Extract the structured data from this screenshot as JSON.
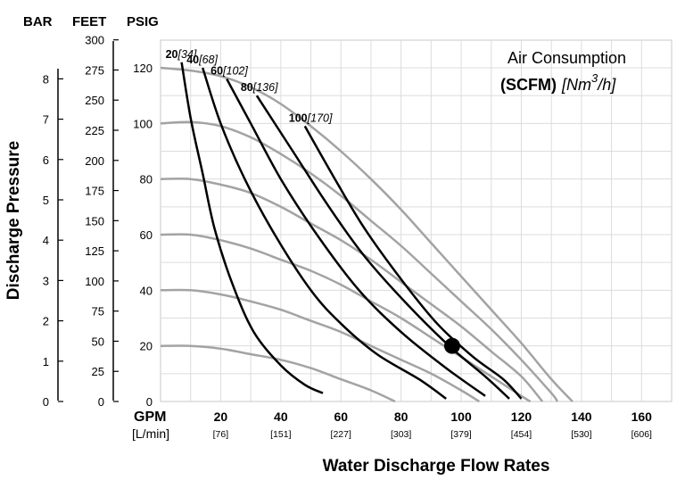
{
  "headers": {
    "bar": "BAR",
    "feet": "FEET",
    "psig": "PSIG"
  },
  "y_axis_title": "Discharge Pressure",
  "x_axis_title": "Water Discharge Flow Rates",
  "x_unit_gpm": "GPM",
  "x_unit_lmin": "[L/min]",
  "air_consumption": {
    "title": "Air Consumption",
    "unit_bold": "(SCFM)",
    "unit_italic_pre": "[Nm",
    "unit_sup": "3",
    "unit_italic_post": "/h]"
  },
  "chart_data": {
    "type": "line",
    "xlabel": "Water Discharge Flow Rates",
    "ylabel": "Discharge Pressure",
    "xlim": [
      0,
      170
    ],
    "ylim": [
      0,
      130
    ],
    "x_ticks": [
      {
        "gpm": "20",
        "lmin": "[76]",
        "x": 20
      },
      {
        "gpm": "40",
        "lmin": "[151]",
        "x": 40
      },
      {
        "gpm": "60",
        "lmin": "[227]",
        "x": 60
      },
      {
        "gpm": "80",
        "lmin": "[303]",
        "x": 80
      },
      {
        "gpm": "100",
        "lmin": "[379]",
        "x": 100
      },
      {
        "gpm": "120",
        "lmin": "[454]",
        "x": 120
      },
      {
        "gpm": "140",
        "lmin": "[530]",
        "x": 140
      },
      {
        "gpm": "160",
        "lmin": "[606]",
        "x": 160
      }
    ],
    "psig_ticks": [
      "0",
      "20",
      "40",
      "60",
      "80",
      "100",
      "120"
    ],
    "feet_ticks": [
      "0",
      "25",
      "50",
      "75",
      "100",
      "125",
      "150",
      "175",
      "200",
      "225",
      "250",
      "275",
      "300"
    ],
    "bar_ticks": [
      "0",
      "1",
      "2",
      "3",
      "4",
      "5",
      "6",
      "7",
      "8"
    ],
    "grid": true,
    "pressure_curves": [
      {
        "inlet": 120,
        "points": [
          [
            0,
            120
          ],
          [
            10,
            119
          ],
          [
            20,
            117
          ],
          [
            30,
            113
          ],
          [
            40,
            107
          ],
          [
            50,
            99
          ],
          [
            60,
            90
          ],
          [
            70,
            80
          ],
          [
            80,
            69
          ],
          [
            90,
            57
          ],
          [
            100,
            45
          ],
          [
            110,
            33
          ],
          [
            120,
            21
          ],
          [
            130,
            8
          ],
          [
            137,
            0
          ]
        ]
      },
      {
        "inlet": 100,
        "points": [
          [
            0,
            100
          ],
          [
            10,
            100.5
          ],
          [
            20,
            99
          ],
          [
            30,
            95
          ],
          [
            40,
            89
          ],
          [
            50,
            82
          ],
          [
            60,
            74
          ],
          [
            70,
            65
          ],
          [
            80,
            56
          ],
          [
            90,
            46
          ],
          [
            100,
            36
          ],
          [
            110,
            26
          ],
          [
            120,
            15
          ],
          [
            130,
            3
          ],
          [
            132,
            0
          ]
        ]
      },
      {
        "inlet": 80,
        "points": [
          [
            0,
            80
          ],
          [
            10,
            80
          ],
          [
            20,
            78
          ],
          [
            30,
            75
          ],
          [
            40,
            70
          ],
          [
            50,
            64
          ],
          [
            60,
            58
          ],
          [
            70,
            51
          ],
          [
            80,
            43
          ],
          [
            90,
            35
          ],
          [
            100,
            27
          ],
          [
            110,
            18
          ],
          [
            120,
            9
          ],
          [
            127,
            0
          ]
        ]
      },
      {
        "inlet": 60,
        "points": [
          [
            0,
            60
          ],
          [
            10,
            60
          ],
          [
            20,
            58
          ],
          [
            30,
            55
          ],
          [
            40,
            51
          ],
          [
            50,
            47
          ],
          [
            60,
            42
          ],
          [
            70,
            36
          ],
          [
            80,
            30
          ],
          [
            90,
            23
          ],
          [
            100,
            16
          ],
          [
            110,
            9
          ],
          [
            120,
            2
          ],
          [
            123,
            0
          ]
        ]
      },
      {
        "inlet": 40,
        "points": [
          [
            0,
            40
          ],
          [
            10,
            40
          ],
          [
            20,
            38.5
          ],
          [
            30,
            36
          ],
          [
            40,
            33
          ],
          [
            50,
            29
          ],
          [
            60,
            25
          ],
          [
            70,
            20
          ],
          [
            80,
            15
          ],
          [
            90,
            10
          ],
          [
            100,
            4
          ],
          [
            106,
            0
          ]
        ]
      },
      {
        "inlet": 20,
        "points": [
          [
            0,
            20
          ],
          [
            10,
            20
          ],
          [
            20,
            19
          ],
          [
            30,
            17
          ],
          [
            40,
            15
          ],
          [
            50,
            12
          ],
          [
            60,
            8
          ],
          [
            70,
            4
          ],
          [
            78,
            0
          ]
        ]
      }
    ],
    "air_curves": [
      {
        "scfm": "20",
        "nm3h": "[34]",
        "points": [
          [
            7,
            122
          ],
          [
            10,
            102
          ],
          [
            14,
            82
          ],
          [
            18,
            62
          ],
          [
            24,
            42
          ],
          [
            31,
            25
          ],
          [
            40,
            13
          ],
          [
            48,
            6
          ],
          [
            54,
            3
          ]
        ]
      },
      {
        "scfm": "40",
        "nm3h": "[68]",
        "points": [
          [
            14,
            120
          ],
          [
            20,
            100
          ],
          [
            28,
            80
          ],
          [
            38,
            60
          ],
          [
            50,
            40
          ],
          [
            60,
            28
          ],
          [
            72,
            17
          ],
          [
            86,
            8
          ],
          [
            95,
            1
          ]
        ]
      },
      {
        "scfm": "60",
        "nm3h": "[102]",
        "points": [
          [
            22,
            116
          ],
          [
            30,
            100
          ],
          [
            40,
            80
          ],
          [
            52,
            60
          ],
          [
            66,
            40
          ],
          [
            80,
            25
          ],
          [
            95,
            12
          ],
          [
            108,
            2
          ]
        ]
      },
      {
        "scfm": "80",
        "nm3h": "[136]",
        "points": [
          [
            32,
            110
          ],
          [
            44,
            90
          ],
          [
            56,
            70
          ],
          [
            68,
            52
          ],
          [
            82,
            35
          ],
          [
            96,
            20
          ],
          [
            108,
            9
          ],
          [
            116,
            1
          ]
        ]
      },
      {
        "scfm": "100",
        "nm3h": "[170]",
        "points": [
          [
            48,
            99
          ],
          [
            58,
            80
          ],
          [
            68,
            62
          ],
          [
            80,
            44
          ],
          [
            92,
            28
          ],
          [
            104,
            16
          ],
          [
            114,
            8
          ],
          [
            120,
            1
          ]
        ]
      }
    ],
    "marker": {
      "x": 97,
      "y": 20
    }
  }
}
